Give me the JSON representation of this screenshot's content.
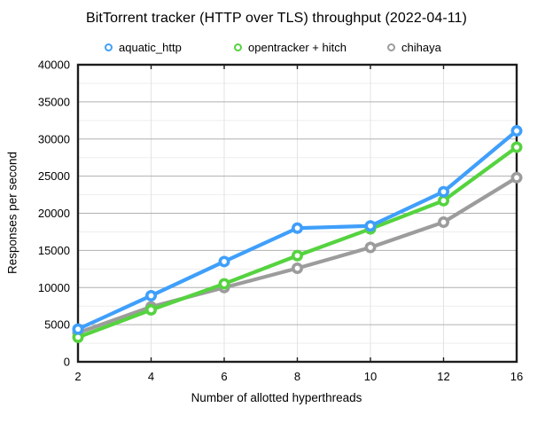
{
  "chart_data": {
    "type": "line",
    "title": "BitTorrent tracker (HTTP over TLS) throughput (2022-04-11)",
    "xlabel": "Number of allotted hyperthreads",
    "ylabel": "Responses per second",
    "x": [
      2,
      4,
      6,
      8,
      10,
      12,
      16
    ],
    "x_tick_labels": [
      "2",
      "4",
      "6",
      "8",
      "10",
      "12",
      "16"
    ],
    "ylim": [
      0,
      40000
    ],
    "y_ticks": [
      0,
      5000,
      10000,
      15000,
      20000,
      25000,
      30000,
      35000,
      40000
    ],
    "y_major_step": 5000,
    "y_minor_step": 2500,
    "grid": "on",
    "legend_position": "top",
    "marker_style": "open-circle",
    "series": [
      {
        "name": "aquatic_http",
        "color": "#3F9FFB",
        "values": [
          4400,
          8900,
          13500,
          18000,
          18300,
          22900,
          31100
        ]
      },
      {
        "name": "opentracker + hitch",
        "color": "#55D33F",
        "values": [
          3300,
          7000,
          10500,
          14300,
          17900,
          21700,
          28900
        ]
      },
      {
        "name": "chihaya",
        "color": "#9C9C9C",
        "values": [
          3900,
          7400,
          10000,
          12600,
          15400,
          18800,
          24800
        ]
      }
    ],
    "plot_colors": {
      "border": "#1d1d1d",
      "grid_major": "#b0b0b0",
      "grid_minor": "#ededed",
      "grid_vertical": "#e3e3e3",
      "background": "#ffffff"
    }
  }
}
